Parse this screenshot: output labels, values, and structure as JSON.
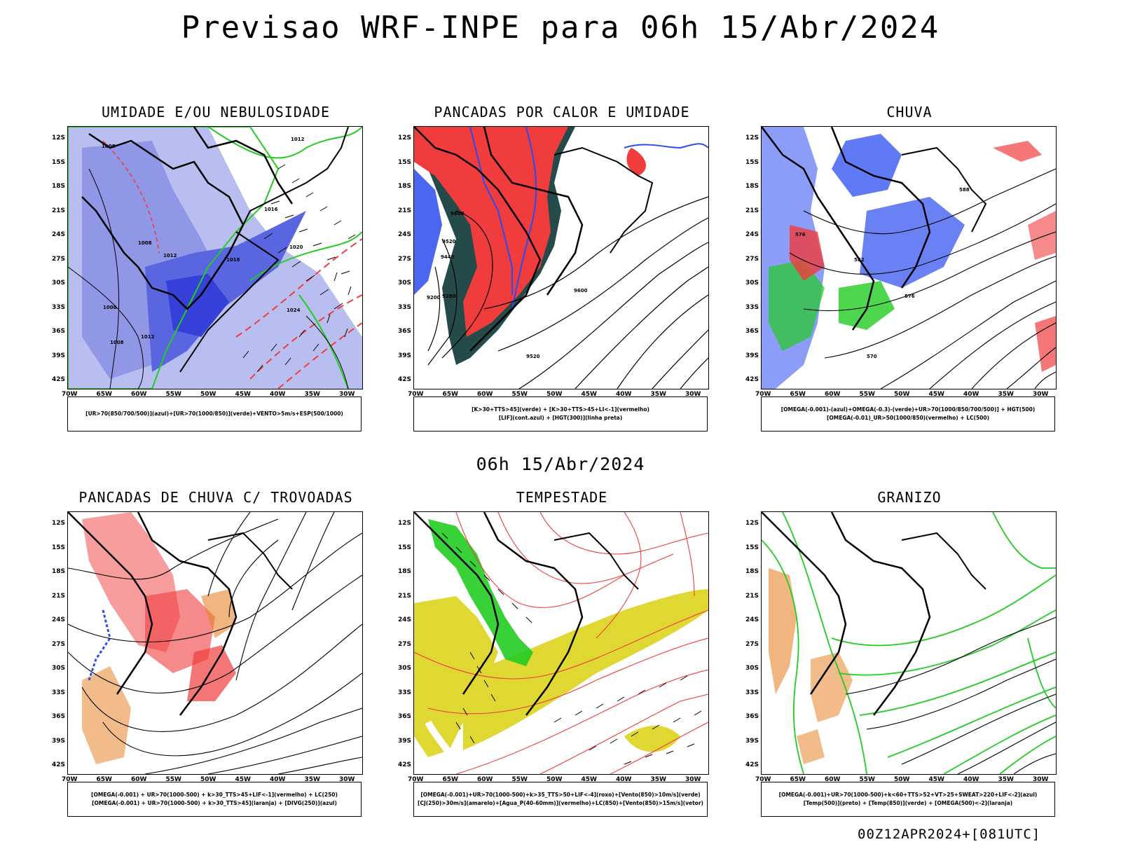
{
  "header": {
    "title": "Previsao WRF-INPE  para 06h 15/Abr/2024",
    "mid_date": "06h 15/Abr/2024",
    "run_stamp": "00Z12APR2024+[081UTC]"
  },
  "axes": {
    "lat_labels": [
      "12S",
      "15S",
      "18S",
      "21S",
      "24S",
      "27S",
      "30S",
      "33S",
      "36S",
      "39S",
      "42S"
    ],
    "lon_labels": [
      "70W",
      "65W",
      "60W",
      "55W",
      "50W",
      "45W",
      "40W",
      "35W",
      "30W"
    ]
  },
  "panels": [
    {
      "id": "umidade",
      "title": "UMIDADE E/OU NEBULOSIDADE",
      "legend": [
        "[UR>70(850/700/500)](azul)+[UR>70(1000/850)](verde)+VENTO>5m/s+ESP(500/1000)"
      ],
      "contour_labels": [
        "1008",
        "1012",
        "1016",
        "1012",
        "1008",
        "1012",
        "1008",
        "1012",
        "1016",
        "1020",
        "1024"
      ]
    },
    {
      "id": "pancadas-calor",
      "title": "PANCADAS POR CALOR E UMIDADE",
      "legend": [
        "[K>30+TTS>45](verde) + [K>30+TTS>45+LI<-1](vermelho)",
        "[LIF](cont.azul) + [HGT(300)](linha preta)"
      ],
      "contour_labels": [
        "9600",
        "9520",
        "9440",
        "9280",
        "9200",
        "9600",
        "9520"
      ]
    },
    {
      "id": "chuva",
      "title": "CHUVA",
      "legend": [
        "[OMEGA(-0.001)-(azul)+OMEGA(-0.3)-(verde)+UR>70(1000/850/700/500)] + HGT(500)",
        "[OMEGA(-0.01)_UR>50(1000/850)(vermelho) + LC(500)"
      ],
      "contour_labels": [
        "588",
        "576",
        "582",
        "576",
        "570"
      ]
    },
    {
      "id": "pancadas-trovoadas",
      "title": "PANCADAS DE CHUVA C/ TROVOADAS",
      "legend": [
        "[OMEGA(-0.001) + UR>70(1000-500) + k>30_TTS>45+LIF<-1](vermelho) + LC(250)",
        "[OMEGA(-0.001) + UR>70(1000-500) + k>30_TTS>45](laranja) + [DIVG(250)](azul)"
      ]
    },
    {
      "id": "tempestade",
      "title": "TEMPESTADE",
      "legend": [
        "[OMEGA(-0.001)+UR>70(1000-500)+k>35_TTS>50+LIF<-4](roxo)+[Vento(850)>10m/s](verde)",
        "[CJ(250)>30m/s](amarelo)+[Agua_P(40-60mm)](vermelho)+LC(850)+[Vento(850)>15m/s](vetor)"
      ]
    },
    {
      "id": "granizo",
      "title": "GRANIZO",
      "legend": [
        "[OMEGA(-0.001)+UR>70(1000-500)+k<60+TTS>52+VT>25+SWEAT>220+LIF<-2](azul)",
        "[Temp(500)](preto) + [Temp(850)](verde) + [OMEGA(500)<-2](laranja)"
      ]
    }
  ],
  "colors": {
    "blue": "#2b4cf0",
    "light_blue": "#9aa6ea",
    "green": "#22cc22",
    "red": "#f03c3c",
    "dark_teal": "#244a4a",
    "orange": "#e8842a",
    "yellow": "#e0d832",
    "black": "#000000"
  }
}
